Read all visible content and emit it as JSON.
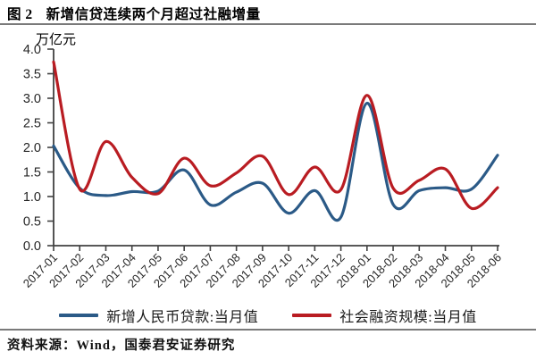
{
  "figure": {
    "label": "图 2",
    "title": "新增信贷连续两个月超过社融增量"
  },
  "source_note": "资料来源：Wind，国泰君安证券研究",
  "colors": {
    "axis": "#404040",
    "tick_text": "#262626",
    "divider": "#7a7a7a"
  },
  "chart_data": {
    "type": "line",
    "title": "新增信贷连续两个月超过社融增量",
    "unit_label": "万亿元",
    "xlabel": "",
    "ylabel": "万亿元",
    "ylim": [
      0.0,
      4.0
    ],
    "ytick_step": 0.5,
    "ytick_labels": [
      "0.0",
      "0.5",
      "1.0",
      "1.5",
      "2.0",
      "2.5",
      "3.0",
      "3.5",
      "4.0"
    ],
    "grid": false,
    "line_smoothing": true,
    "legend_position": "bottom",
    "categories": [
      "2017-01",
      "2017-02",
      "2017-03",
      "2017-04",
      "2017-05",
      "2017-06",
      "2017-07",
      "2017-08",
      "2017-09",
      "2017-10",
      "2017-11",
      "2017-12",
      "2018-01",
      "2018-02",
      "2018-03",
      "2018-04",
      "2018-05",
      "2018-06"
    ],
    "series": [
      {
        "name": "新增人民币贷款:当月值",
        "color": "#2B5A87",
        "values": [
          2.03,
          1.17,
          1.02,
          1.1,
          1.11,
          1.54,
          0.83,
          1.09,
          1.27,
          0.66,
          1.12,
          0.58,
          2.9,
          0.84,
          1.12,
          1.18,
          1.15,
          1.84
        ]
      },
      {
        "name": "社会融资规模:当月值",
        "color": "#B91C22",
        "values": [
          3.74,
          1.15,
          2.12,
          1.39,
          1.06,
          1.78,
          1.22,
          1.48,
          1.82,
          1.04,
          1.6,
          1.14,
          3.06,
          1.17,
          1.33,
          1.56,
          0.76,
          1.18
        ]
      }
    ]
  }
}
